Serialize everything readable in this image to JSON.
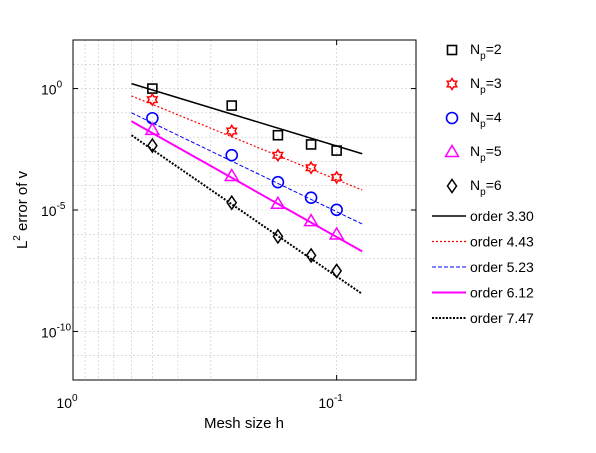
{
  "chart_data": {
    "type": "line",
    "title": "",
    "xlabel": "Mesh size h",
    "ylabel": {
      "prefix": "L",
      "sup": "2",
      "rest": " error of v"
    },
    "x_scale": "log",
    "y_scale": "log",
    "x_reversed": true,
    "x_range": [
      1.0,
      0.05
    ],
    "y_range": [
      1e-12,
      100.0
    ],
    "grid": true,
    "legend_position": "right, outside plot",
    "x_ticks": [
      {
        "value": 1,
        "base": "10",
        "exp": "0"
      },
      {
        "value": 0.1,
        "base": "10",
        "exp": "-1"
      }
    ],
    "y_ticks": [
      {
        "value": 1,
        "base": "10",
        "exp": "0"
      },
      {
        "value": 1e-05,
        "base": "10",
        "exp": "-5"
      },
      {
        "value": 1e-10,
        "base": "10",
        "exp": "-10"
      }
    ],
    "series": [
      {
        "name": "N_p=2",
        "label_base": "N",
        "label_sub": "p",
        "label_rest": "=2",
        "marker": "square",
        "color": "#000000",
        "x": [
          0.5,
          0.25,
          0.167,
          0.125,
          0.1
        ],
        "y": [
          1.0,
          0.2,
          0.012,
          0.005,
          0.0028
        ]
      },
      {
        "name": "N_p=3",
        "label_base": "N",
        "label_sub": "p",
        "label_rest": "=3",
        "marker": "hexagram",
        "color": "#ff0000",
        "x": [
          0.5,
          0.25,
          0.167,
          0.125,
          0.1
        ],
        "y": [
          0.35,
          0.018,
          0.0018,
          0.00055,
          0.00022
        ]
      },
      {
        "name": "N_p=4",
        "label_base": "N",
        "label_sub": "p",
        "label_rest": "=4",
        "marker": "circle",
        "color": "#0000ff",
        "x": [
          0.5,
          0.25,
          0.167,
          0.125,
          0.1
        ],
        "y": [
          0.06,
          0.0018,
          0.00014,
          3.2e-05,
          1.02e-05
        ]
      },
      {
        "name": "N_p=5",
        "label_base": "N",
        "label_sub": "p",
        "label_rest": "=5",
        "marker": "triangle",
        "color": "#ff00ff",
        "x": [
          0.5,
          0.25,
          0.167,
          0.125,
          0.1
        ],
        "y": [
          0.02,
          0.00025,
          1.8e-05,
          3.5e-06,
          9.8e-07
        ]
      },
      {
        "name": "N_p=6",
        "label_base": "N",
        "label_sub": "p",
        "label_rest": "=6",
        "marker": "diamond",
        "color": "#000000",
        "x": [
          0.5,
          0.25,
          0.167,
          0.125,
          0.1
        ],
        "y": [
          0.0045,
          2e-05,
          8.2e-07,
          1.35e-07,
          3.1e-08
        ]
      }
    ],
    "fit_lines": [
      {
        "label": "order 3.30",
        "order": 3.3,
        "color": "#000000",
        "dash": "solid",
        "width": 1.5,
        "x_start": 0.6,
        "y_start": 1.6,
        "x_end": 0.08
      },
      {
        "label": "order 4.43",
        "order": 4.43,
        "color": "#ff0000",
        "dash": "2,2",
        "width": 1.2,
        "x_start": 0.6,
        "y_start": 0.5,
        "x_end": 0.08
      },
      {
        "label": "order 5.23",
        "order": 5.23,
        "color": "#0000ff",
        "dash": "4,2",
        "width": 1.0,
        "x_start": 0.6,
        "y_start": 0.1,
        "x_end": 0.08
      },
      {
        "label": "order 6.12",
        "order": 6.12,
        "color": "#ff00ff",
        "dash": "solid",
        "width": 2.0,
        "x_start": 0.6,
        "y_start": 0.045,
        "x_end": 0.08
      },
      {
        "label": "order 7.47",
        "order": 7.47,
        "color": "#000000",
        "dash": "2,1.5",
        "width": 2.0,
        "x_start": 0.6,
        "y_start": 0.012,
        "x_end": 0.08
      }
    ]
  }
}
